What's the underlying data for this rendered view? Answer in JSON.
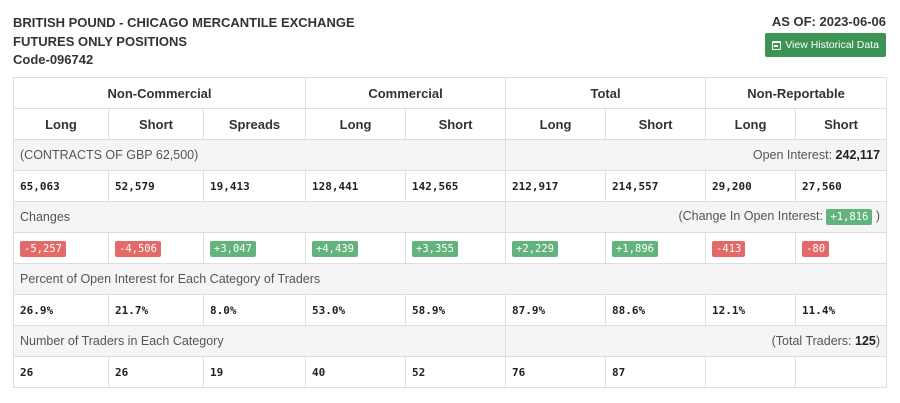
{
  "header": {
    "title_line1": "BRITISH POUND - CHICAGO MERCANTILE EXCHANGE",
    "title_line2": "FUTURES ONLY POSITIONS",
    "code": "Code-096742",
    "as_of": "AS OF: 2023-06-06",
    "view_historical": "View Historical Data"
  },
  "groups": [
    "Non-Commercial",
    "Commercial",
    "Total",
    "Non-Reportable"
  ],
  "columns": [
    "Long",
    "Short",
    "Spreads",
    "Long",
    "Short",
    "Long",
    "Short",
    "Long",
    "Short"
  ],
  "contracts": {
    "label": "(CONTRACTS OF GBP 62,500)",
    "oi_label": "Open Interest:",
    "oi_value": "242,117",
    "values": [
      "65,063",
      "52,579",
      "19,413",
      "128,441",
      "142,565",
      "212,917",
      "214,557",
      "29,200",
      "27,560"
    ]
  },
  "changes": {
    "label": "Changes",
    "coi_label": "(Change In Open Interest:",
    "coi_value": "+1,816",
    "coi_close": ")",
    "values": [
      "-5,257",
      "-4,506",
      "+3,047",
      "+4,439",
      "+3,355",
      "+2,229",
      "+1,896",
      "-413",
      "-80"
    ],
    "signs": [
      "neg",
      "neg",
      "pos",
      "pos",
      "pos",
      "pos",
      "pos",
      "neg",
      "neg"
    ]
  },
  "percent": {
    "label": "Percent of Open Interest for Each Category of Traders",
    "values": [
      "26.9%",
      "21.7%",
      "8.0%",
      "53.0%",
      "58.9%",
      "87.9%",
      "88.6%",
      "12.1%",
      "11.4%"
    ]
  },
  "traders": {
    "label": "Number of Traders in Each Category",
    "total_label": "(Total Traders:",
    "total_value": "125",
    "total_close": ")",
    "values": [
      "26",
      "26",
      "19",
      "40",
      "52",
      "76",
      "87",
      "",
      ""
    ]
  },
  "colors": {
    "button": "#3d9356",
    "negative": "#e46a6a",
    "positive": "#62b47c",
    "section_bg": "#f5f5f5"
  },
  "icons": {
    "view_historical": "calendar-icon"
  }
}
